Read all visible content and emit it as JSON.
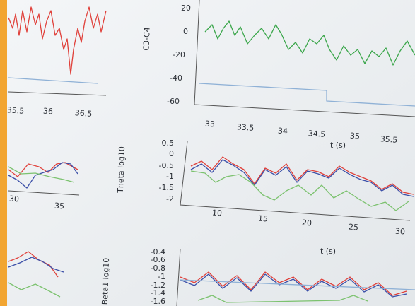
{
  "panels": [
    {
      "x_ticks": [
        "35.5",
        "36",
        "36.5"
      ]
    },
    {
      "y_label": "C3-C4",
      "y_ticks": [
        "20",
        "0",
        "-20",
        "-40",
        "-60"
      ],
      "x_ticks": [
        "33",
        "33.5",
        "34",
        "34.5",
        "35",
        "35.5"
      ],
      "x_label": "t (s)"
    },
    {
      "x_ticks": [
        "30",
        "35"
      ]
    },
    {
      "y_label": "Theta log10",
      "y_ticks": [
        "0.5",
        "0",
        "-0.5",
        "-1",
        "-1.5",
        "-2"
      ],
      "x_ticks": [
        "10",
        "15",
        "20",
        "25",
        "30"
      ],
      "x_label": "t (s)"
    },
    {
      "y_label": "Beta1 log10",
      "y_ticks": [
        "-0.4",
        "-0.6",
        "-0.8",
        "-1",
        "-1.2",
        "-1.4",
        "-1.6"
      ]
    }
  ]
}
